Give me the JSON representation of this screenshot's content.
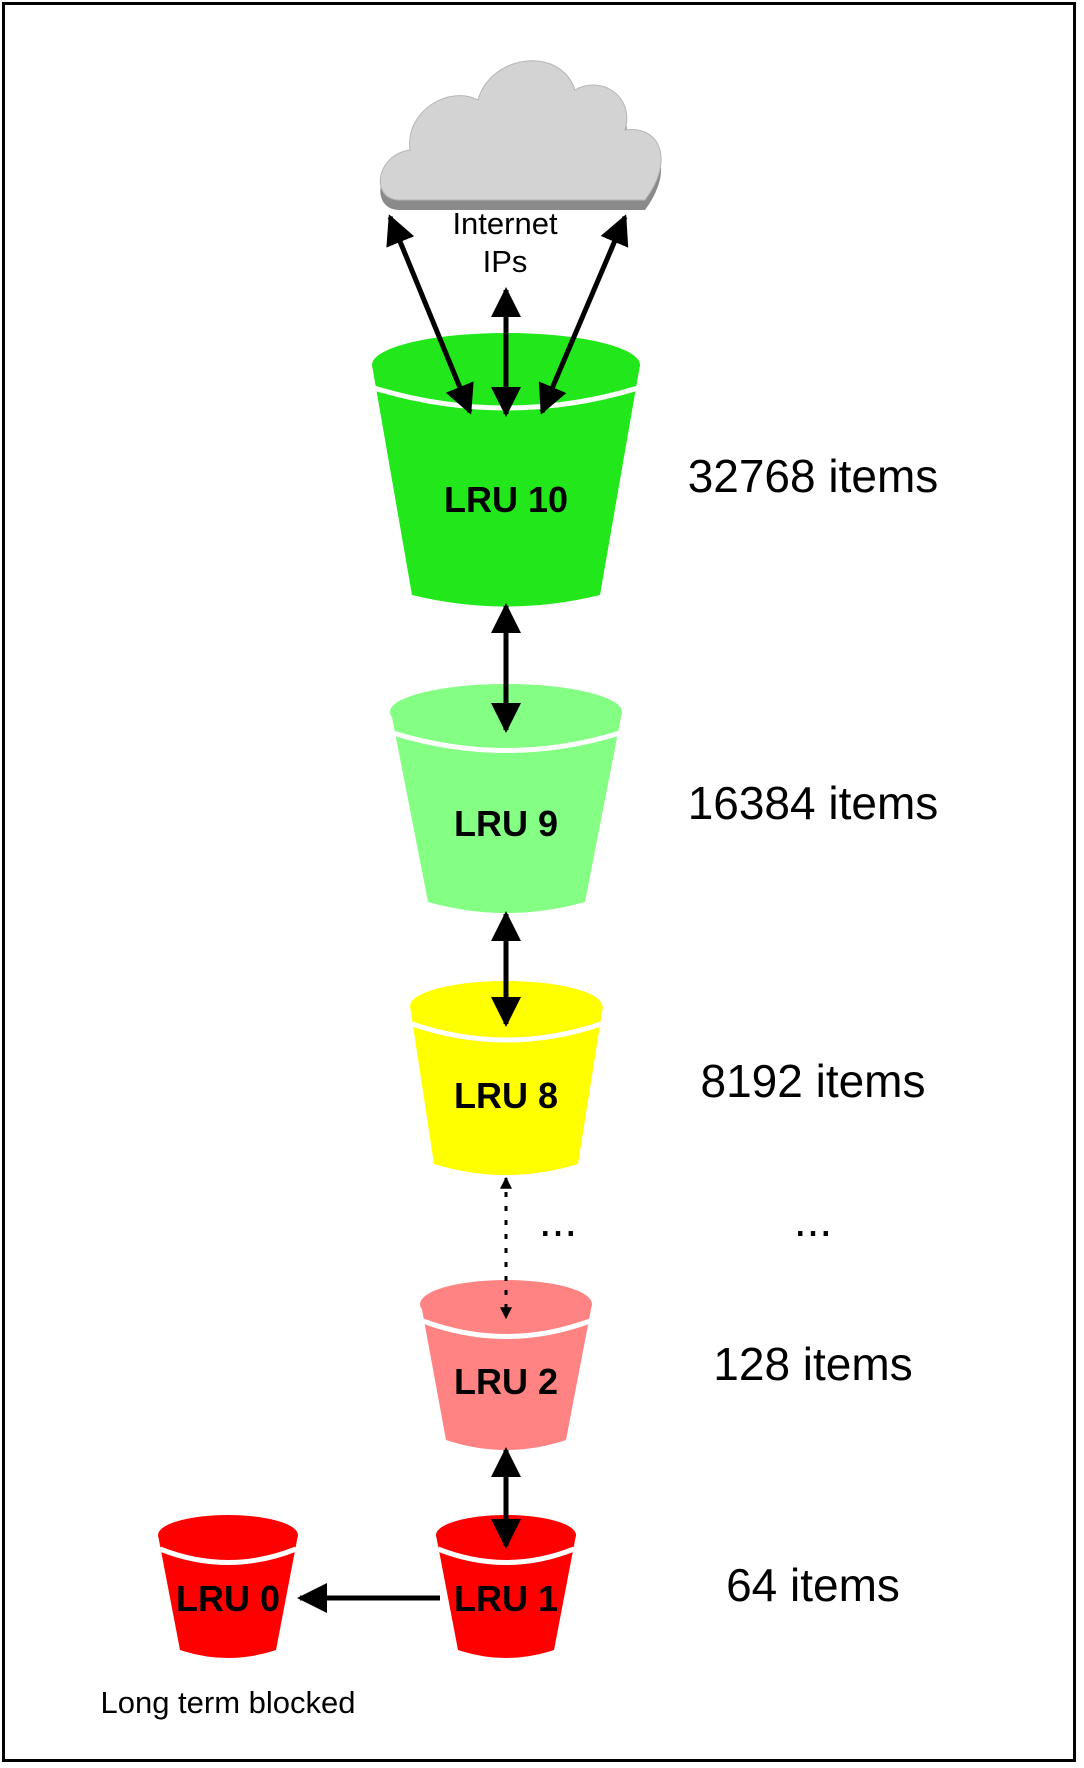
{
  "cloud": {
    "label_line1": "Internet",
    "label_line2": "IPs"
  },
  "buckets": [
    {
      "label": "LRU 10",
      "count": "32768 items",
      "color": "#22e81b"
    },
    {
      "label": "LRU 9",
      "count": "16384 items",
      "color": "#84ff84"
    },
    {
      "label": "LRU 8",
      "count": "8192 items",
      "color": "#ffff00"
    },
    {
      "label": "LRU 2",
      "count": "128 items",
      "color": "#ff8383"
    },
    {
      "label": "LRU 1",
      "count": "64 items",
      "color": "#ff0000"
    },
    {
      "label": "LRU 0",
      "count": "",
      "color": "#ff0000"
    }
  ],
  "ellipsis_left": "...",
  "ellipsis_right": "...",
  "blocked_label": "Long term blocked"
}
